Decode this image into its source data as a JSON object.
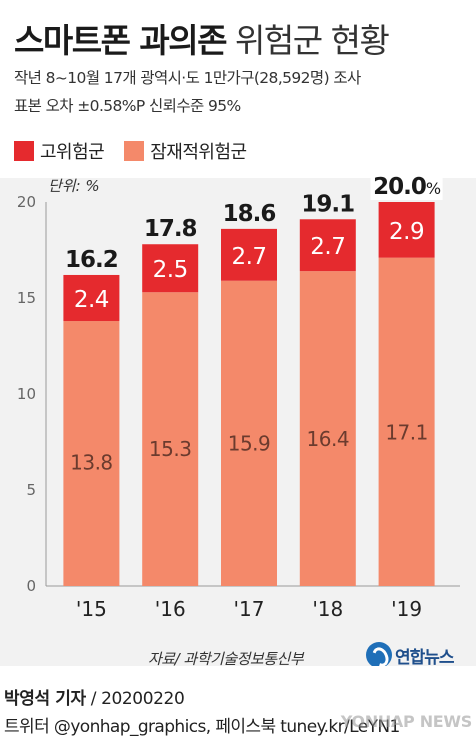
{
  "title": {
    "bold": "스마트폰 과의존",
    "light": "위험군 현황"
  },
  "subtitle_lines": [
    "작년 8~10월 17개 광역시·도 1만가구(28,592명) 조사",
    "표본 오차 ±0.58%P 신뢰수준 95%"
  ],
  "legend": [
    {
      "label": "고위험군",
      "color": "#e52a2e"
    },
    {
      "label": "잠재적위험군",
      "color": "#f4896a"
    }
  ],
  "unit_label": "단위: %",
  "source": "자료/ 과학기술정보통신부",
  "logo_text": "연합뉴스",
  "byline": {
    "name": "박영석 기자",
    "date": "20200220"
  },
  "social": "트위터 @yonhap_graphics, 페이스북 tuney.kr/LeYN1",
  "watermark": "YONHAP NEWS",
  "chart_data": {
    "type": "bar",
    "stacked": true,
    "categories": [
      "'15",
      "'16",
      "'17",
      "'18",
      "'19"
    ],
    "series": [
      {
        "name": "잠재적위험군",
        "values": [
          13.8,
          15.3,
          15.9,
          16.4,
          17.1
        ],
        "color": "#f4896a"
      },
      {
        "name": "고위험군",
        "values": [
          2.4,
          2.5,
          2.7,
          2.7,
          2.9
        ],
        "color": "#e52a2e"
      }
    ],
    "totals": [
      "16.2",
      "17.8",
      "18.6",
      "19.1",
      "20.0"
    ],
    "total_suffix_last": "%",
    "yticks": [
      0,
      5,
      10,
      15,
      20
    ],
    "ylim": [
      0,
      20
    ],
    "grid": false
  }
}
